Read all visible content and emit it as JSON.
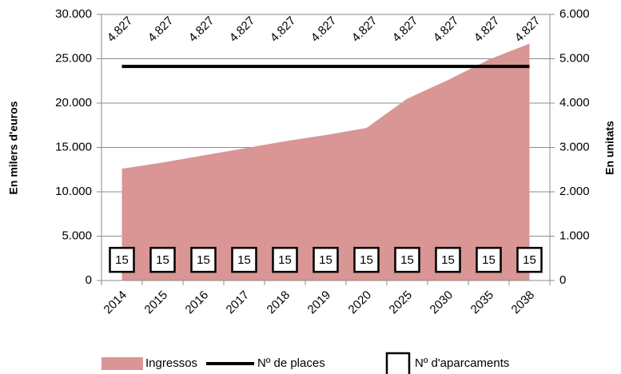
{
  "chart_data": {
    "type": "combo",
    "categories": [
      "2014",
      "2015",
      "2016",
      "2017",
      "2018",
      "2019",
      "2020",
      "2025",
      "2030",
      "2035",
      "2038"
    ],
    "ylabel": "En milers d'euros",
    "y2label": "En unitats",
    "ylim": [
      0,
      30000
    ],
    "yticks": [
      0,
      {
        "value": 5000,
        "label": "5.000"
      },
      {
        "value": 10000,
        "label": "10.000"
      },
      {
        "value": 15000,
        "label": "15.000"
      },
      {
        "value": 20000,
        "label": "20.000"
      },
      {
        "value": 25000,
        "label": "25.000"
      },
      {
        "value": 30000,
        "label": "30.000"
      }
    ],
    "y2lim": [
      0,
      6000
    ],
    "y2ticks": [
      0,
      {
        "value": 1000,
        "label": "1.000"
      },
      {
        "value": 2000,
        "label": "2.000"
      },
      {
        "value": 3000,
        "label": "3.000"
      },
      {
        "value": 4000,
        "label": "4.000"
      },
      {
        "value": 5000,
        "label": "5.000"
      },
      {
        "value": 6000,
        "label": "6.000"
      }
    ],
    "grid": true,
    "legend": "bottom",
    "series": [
      {
        "name": "Ingressos",
        "type": "area",
        "color": "#d99694",
        "values": [
          12600,
          13300,
          14100,
          14900,
          15700,
          16400,
          17200,
          20500,
          22600,
          24900,
          26700
        ]
      },
      {
        "name": "Nº de places",
        "type": "line",
        "axis": "y2",
        "color": "#000000",
        "values": [
          4827,
          4827,
          4827,
          4827,
          4827,
          4827,
          4827,
          4827,
          4827,
          4827,
          4827
        ],
        "value_labels": [
          "4.827",
          "4.827",
          "4.827",
          "4.827",
          "4.827",
          "4.827",
          "4.827",
          "4.827",
          "4.827",
          "4.827",
          "4.827"
        ]
      },
      {
        "name": "Nº d'aparcaments",
        "type": "box",
        "axis": "y2",
        "color": "#000000",
        "values": [
          15,
          15,
          15,
          15,
          15,
          15,
          15,
          15,
          15,
          15,
          15
        ]
      }
    ]
  }
}
